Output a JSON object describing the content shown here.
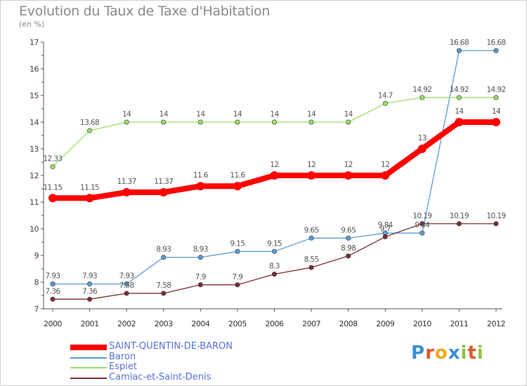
{
  "title": "Evolution du Taux de Taxe d'Habitation",
  "unit": "(en %)",
  "logo": {
    "text": "Proxiti",
    "colors": [
      "#3a8fd6",
      "#e05a2a",
      "#f2a71b",
      "#3a8fd6",
      "#8bc53f",
      "#e05a2a",
      "#8bc53f"
    ]
  },
  "chart_data": {
    "type": "line",
    "x": [
      "2000",
      "2001",
      "2002",
      "2003",
      "2004",
      "2005",
      "2006",
      "2007",
      "2008",
      "2009",
      "2010",
      "2011",
      "2012"
    ],
    "ylim": [
      7,
      17
    ],
    "yticks": [
      "7",
      "8",
      "9",
      "10",
      "11",
      "12",
      "13",
      "14",
      "15",
      "16",
      "17"
    ],
    "grid": false,
    "legend": "bottom-left",
    "series": [
      {
        "name": "SAINT-QUENTIN-DE-BARON",
        "color": "#ff0000",
        "thick": true,
        "values": [
          11.15,
          11.15,
          11.37,
          11.37,
          11.6,
          11.6,
          12,
          12,
          12,
          12,
          13,
          14,
          14
        ],
        "labels": [
          "11.15",
          "11.15",
          "11.37",
          "11.37",
          "11.6",
          "11.6",
          "12",
          "12",
          "12",
          "12",
          "13",
          "14",
          "14"
        ]
      },
      {
        "name": "Baron",
        "color": "#5b9bd5",
        "values": [
          7.93,
          7.93,
          7.93,
          8.93,
          8.93,
          9.15,
          9.15,
          9.65,
          9.65,
          9.84,
          9.84,
          16.68,
          16.68
        ],
        "labels": [
          "7.93",
          "7.93",
          "7.93",
          "8.93",
          "8.93",
          "9.15",
          "9.15",
          "9.65",
          "9.65",
          "9.84",
          "9.84",
          "16.68",
          "16.68"
        ]
      },
      {
        "name": "Espiet",
        "color": "#99e066",
        "values": [
          12.33,
          13.68,
          14,
          14,
          14,
          14,
          14,
          14,
          14,
          14.7,
          14.92,
          14.92,
          14.92
        ],
        "labels": [
          "12.33",
          "13.68",
          "14",
          "14",
          "14",
          "14",
          "14",
          "14",
          "14",
          "14.7",
          "14.92",
          "14.92",
          "14.92"
        ]
      },
      {
        "name": "Camiac-et-Saint-Denis",
        "color": "#7a2f2f",
        "values": [
          7.36,
          7.36,
          7.58,
          7.58,
          7.9,
          7.9,
          8.3,
          8.55,
          8.98,
          9.7,
          10.19,
          10.19,
          10.19
        ],
        "labels": [
          "7.36",
          "7.36",
          "7.58",
          "7.58",
          "7.9",
          "7.9",
          "8.3",
          "8.55",
          "8.98",
          "9.7",
          "10.19",
          "10.19",
          "10.19"
        ]
      }
    ]
  }
}
